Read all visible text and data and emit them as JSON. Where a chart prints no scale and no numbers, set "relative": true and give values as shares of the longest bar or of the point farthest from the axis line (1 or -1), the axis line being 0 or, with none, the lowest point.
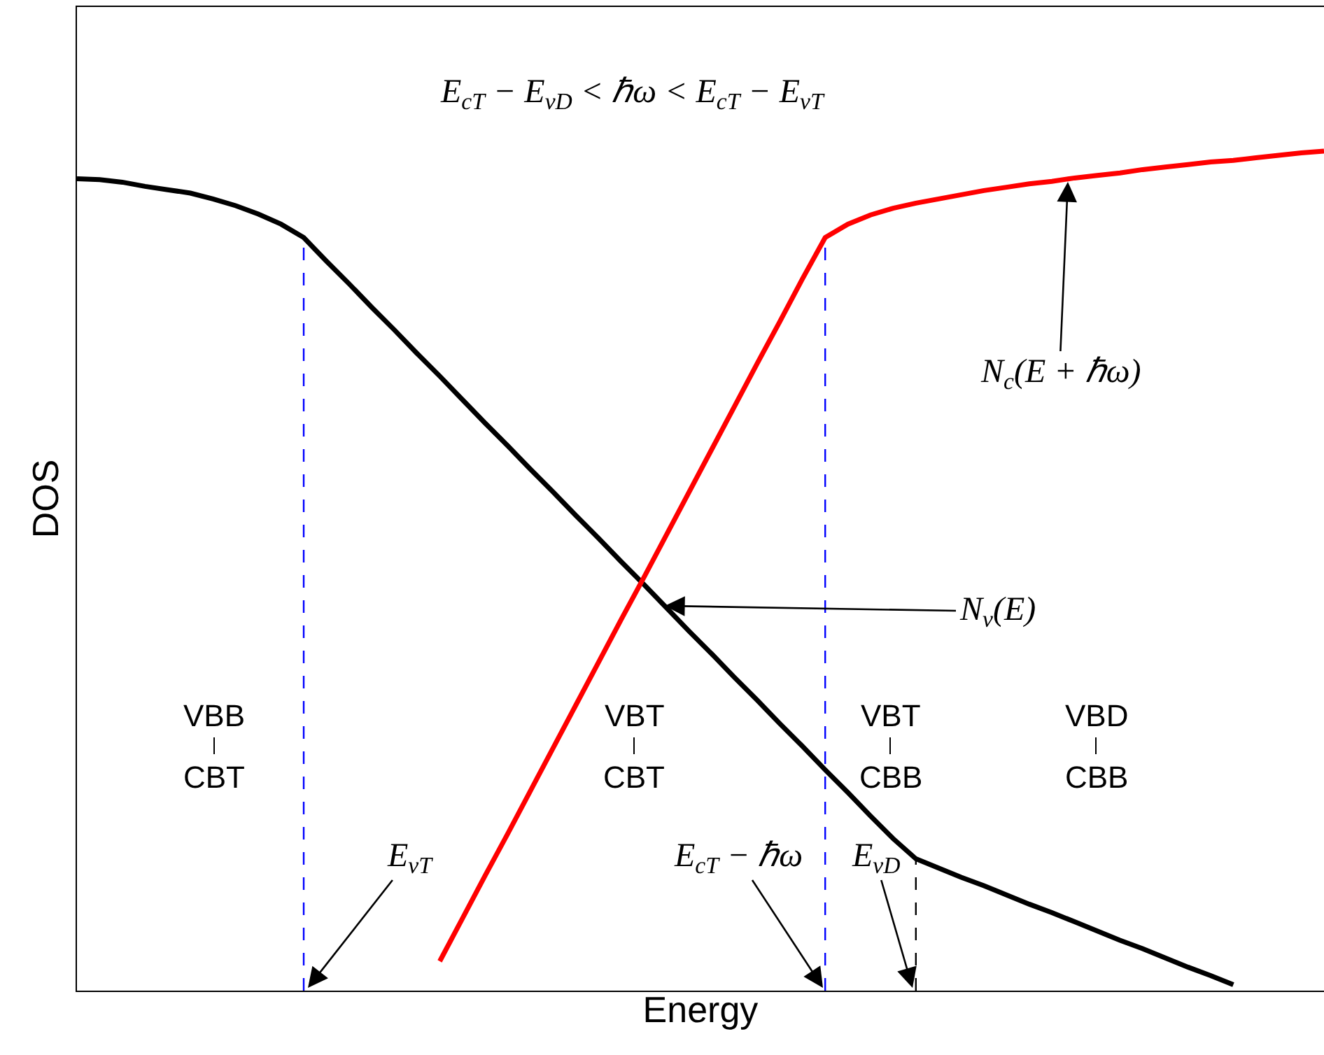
{
  "chart_data": {
    "type": "line",
    "relative": true,
    "xlabel": "Energy",
    "ylabel": "DOS",
    "legend": false,
    "grid": false,
    "marker": "none",
    "line_style": "solid",
    "categories": [
      null,
      null,
      null,
      null,
      null,
      null,
      null,
      null,
      null,
      null,
      null,
      null,
      null,
      null,
      null,
      null,
      null,
      null,
      null,
      null,
      null,
      null,
      null,
      null,
      null,
      null,
      null,
      null,
      null,
      null,
      null,
      null,
      null,
      null,
      null,
      null,
      null,
      null,
      null,
      null,
      null,
      null,
      null,
      null,
      null,
      null,
      null,
      null,
      null,
      null,
      null,
      null,
      null,
      null,
      null,
      null
    ],
    "series": [
      {
        "color": "#000000",
        "values": [
          0.967,
          0.966,
          0.963,
          0.958,
          0.954,
          0.95,
          0.943,
          0.935,
          0.925,
          0.913,
          0.897,
          0.869,
          0.842,
          0.814,
          0.787,
          0.759,
          0.732,
          0.704,
          0.676,
          0.649,
          0.621,
          0.594,
          0.566,
          0.539,
          0.511,
          0.484,
          0.456,
          0.428,
          0.401,
          0.373,
          0.346,
          0.318,
          0.291,
          0.263,
          0.236,
          0.208,
          0.181,
          0.157,
          0.146,
          0.135,
          0.125,
          0.114,
          0.103,
          0.093,
          0.082,
          0.071,
          0.06,
          0.05,
          0.039,
          0.028,
          0.018,
          0.007,
          null,
          null,
          null,
          null
        ]
      },
      {
        "color": "#ff0000",
        "values": [
          null,
          null,
          null,
          null,
          null,
          null,
          null,
          null,
          null,
          null,
          null,
          null,
          null,
          null,
          null,
          null,
          0.035,
          0.086,
          0.137,
          0.187,
          0.238,
          0.289,
          0.34,
          0.391,
          0.442,
          0.492,
          0.543,
          0.594,
          0.645,
          0.696,
          0.747,
          0.797,
          0.848,
          0.897,
          0.913,
          0.924,
          0.932,
          0.938,
          0.943,
          0.948,
          0.953,
          0.957,
          0.961,
          0.964,
          0.968,
          0.971,
          0.974,
          0.978,
          0.981,
          0.984,
          0.987,
          0.989,
          0.992,
          0.995,
          0.998,
          1.0
        ]
      }
    ],
    "annotations": [
      "E$_{cT}$ − E$_{vD}$ < ℏω < E$_{cT}$ − E$_{vT}$",
      "N$_{c}$(E + ℏω)",
      "N$_{v}$(E)",
      "E$_{vT}$",
      "E$_{cT}$ − ℏω",
      "E$_{vD}$",
      "VBB",
      "CBT",
      "VBT",
      "CBT",
      "VBT",
      "CBB",
      "VBD",
      "CBB"
    ]
  }
}
